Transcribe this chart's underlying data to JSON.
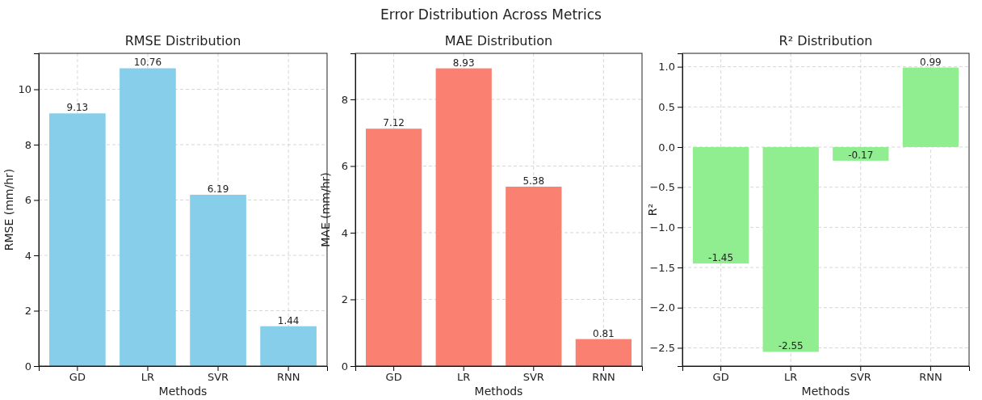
{
  "chart_data": [
    {
      "type": "other",
      "title": "Error Distribution Across Metrics"
    },
    {
      "type": "bar",
      "title": "RMSE Distribution",
      "xlabel": "Methods",
      "ylabel": "RMSE (mm/hr)",
      "categories": [
        "GD",
        "LR",
        "SVR",
        "RNN"
      ],
      "values": [
        9.13,
        10.76,
        6.19,
        1.44
      ],
      "color": "#87ceeb",
      "ylim": [
        0,
        11.3
      ],
      "yticks": [
        0,
        2,
        4,
        6,
        8,
        10
      ],
      "grid": true,
      "data_labels": true
    },
    {
      "type": "bar",
      "title": "MAE Distribution",
      "xlabel": "Methods",
      "ylabel": "MAE (mm/hr)",
      "categories": [
        "GD",
        "LR",
        "SVR",
        "RNN"
      ],
      "values": [
        7.12,
        8.93,
        5.38,
        0.81
      ],
      "color": "#fa8072",
      "ylim": [
        0,
        9.38
      ],
      "yticks": [
        0,
        2,
        4,
        6,
        8
      ],
      "grid": true,
      "data_labels": true
    },
    {
      "type": "bar",
      "title": "R² Distribution",
      "xlabel": "Methods",
      "ylabel": "R²",
      "categories": [
        "GD",
        "LR",
        "SVR",
        "RNN"
      ],
      "values": [
        -1.45,
        -2.55,
        -0.17,
        0.99
      ],
      "color": "#90ee90",
      "ylim": [
        -2.727,
        1.167
      ],
      "yticks": [
        {
          "value": -2.5,
          "label": "−2.5"
        },
        {
          "value": -2.0,
          "label": "−2.0"
        },
        {
          "value": -1.5,
          "label": "−1.5"
        },
        {
          "value": -1.0,
          "label": "−1.0"
        },
        {
          "value": -0.5,
          "label": "−0.5"
        },
        {
          "value": 0,
          "label": "0.0"
        },
        {
          "value": 0.5,
          "label": "0.5"
        },
        {
          "value": 1.0,
          "label": "1.0"
        }
      ],
      "grid": true,
      "data_labels": true
    }
  ]
}
